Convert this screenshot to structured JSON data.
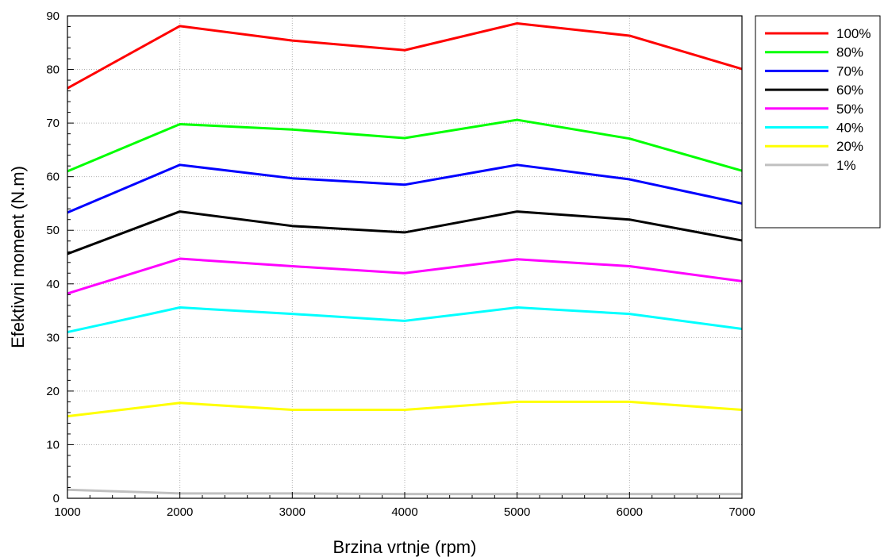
{
  "chart_data": {
    "type": "line",
    "title": "",
    "xlabel": "Brzina vrtnje (rpm)",
    "ylabel": "Efektivni moment (N.m)",
    "x": [
      1000,
      2000,
      3000,
      4000,
      5000,
      6000,
      7000
    ],
    "xlim": [
      1000,
      7000
    ],
    "ylim": [
      0,
      90
    ],
    "xticks": [
      "1000",
      "2000",
      "3000",
      "4000",
      "5000",
      "6000",
      "7000"
    ],
    "yticks": [
      "0",
      "10",
      "20",
      "30",
      "40",
      "50",
      "60",
      "70",
      "80",
      "90"
    ],
    "grid": true,
    "legend_position": "right",
    "series": [
      {
        "name": "100%",
        "color": "#ff0000",
        "values": [
          76.5,
          88.1,
          85.4,
          83.6,
          88.6,
          86.3,
          80.1
        ]
      },
      {
        "name": "80%",
        "color": "#00ff00",
        "values": [
          61.0,
          69.8,
          68.8,
          67.2,
          70.6,
          67.1,
          61.1
        ]
      },
      {
        "name": "70%",
        "color": "#0000ff",
        "values": [
          53.3,
          62.2,
          59.7,
          58.5,
          62.2,
          59.5,
          55.0
        ]
      },
      {
        "name": "60%",
        "color": "#000000",
        "values": [
          45.6,
          53.5,
          50.8,
          49.6,
          53.5,
          52.0,
          48.1
        ]
      },
      {
        "name": "50%",
        "color": "#ff00ff",
        "values": [
          38.2,
          44.7,
          43.3,
          42.0,
          44.6,
          43.3,
          40.5
        ]
      },
      {
        "name": "40%",
        "color": "#00ffff",
        "values": [
          31.0,
          35.6,
          34.4,
          33.1,
          35.6,
          34.4,
          31.6
        ]
      },
      {
        "name": "20%",
        "color": "#ffff00",
        "values": [
          15.3,
          17.8,
          16.5,
          16.5,
          18.0,
          18.0,
          16.5
        ]
      },
      {
        "name": "1%",
        "color": "#c0c0c0",
        "values": [
          1.6,
          0.9,
          0.9,
          0.8,
          0.8,
          0.8,
          0.8
        ]
      }
    ]
  }
}
